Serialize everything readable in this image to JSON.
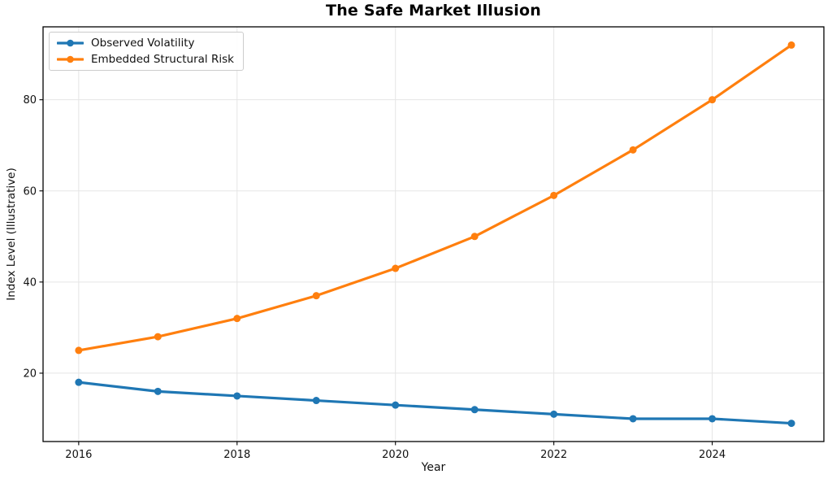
{
  "chart_data": {
    "type": "line",
    "title": "The Safe Market Illusion",
    "xlabel": "Year",
    "ylabel": "Index Level (Illustrative)",
    "x": [
      2016,
      2017,
      2018,
      2019,
      2020,
      2021,
      2022,
      2023,
      2024,
      2025
    ],
    "series": [
      {
        "name": "Observed Volatility",
        "color": "#1f77b4",
        "values": [
          18,
          16,
          15,
          14,
          13,
          12,
          11,
          10,
          10,
          9
        ]
      },
      {
        "name": "Embedded Structural Risk",
        "color": "#ff7f0e",
        "values": [
          25,
          28,
          32,
          37,
          43,
          50,
          59,
          69,
          80,
          92
        ]
      }
    ],
    "xticks": [
      2016,
      2018,
      2020,
      2022,
      2024
    ],
    "yticks": [
      20,
      40,
      60,
      80
    ],
    "xlim": [
      2015.55,
      2025.41
    ],
    "ylim": [
      5,
      96
    ],
    "grid": true,
    "legend_position": "upper-left",
    "style": {
      "grid_color": "#e5e5e5",
      "spine_color": "#000000",
      "text_color": "#111111",
      "line_width": 3.2,
      "marker_radius": 4.5
    }
  }
}
